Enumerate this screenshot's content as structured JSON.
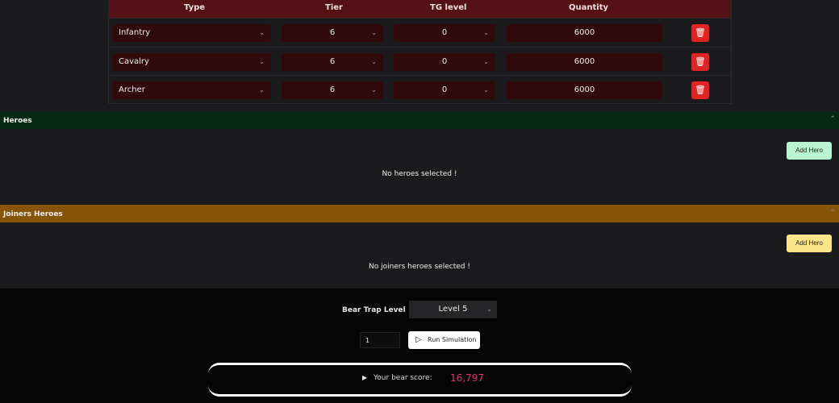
{
  "table": {
    "headers": [
      "Type",
      "Tier",
      "TG level",
      "Quantity"
    ],
    "rows": [
      {
        "type": "Infantry",
        "tier": "6",
        "tg": "0",
        "quantity": "6000"
      },
      {
        "type": "Cavalry",
        "tier": "6",
        "tg": "0",
        "quantity": "6000"
      },
      {
        "type": "Archer",
        "tier": "6",
        "tg": "0",
        "quantity": "6000"
      }
    ]
  },
  "heroes": {
    "title": "Heroes",
    "add_label": "Add Hero",
    "empty": "No heroes selected !",
    "color": "#052914",
    "button_color": "#b8f5d0"
  },
  "joiners": {
    "title": "Joiners Heroes",
    "add_label": "Add Hero",
    "empty": "No joiners heroes selected !",
    "color": "#87550a",
    "button_color": "#fde68a"
  },
  "bear": {
    "label": "Bear Trap Level",
    "level": "Level 5",
    "count": "1",
    "run_label": "Run Simulation",
    "score_label": "Your bear score:",
    "score": "16,797",
    "score_color": "#e0337a"
  }
}
